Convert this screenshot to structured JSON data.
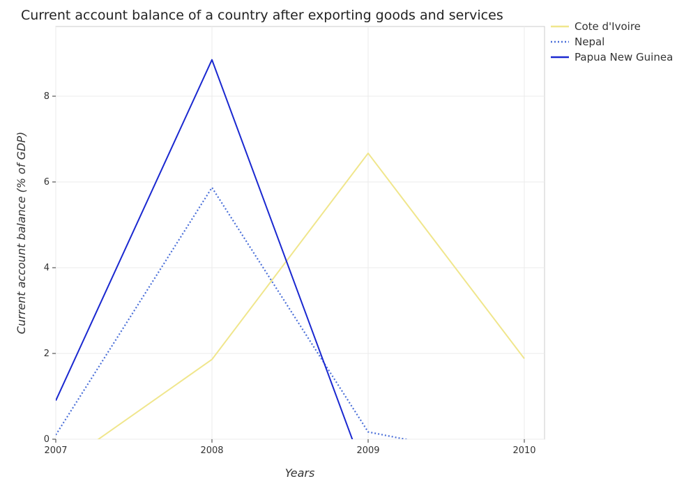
{
  "chart_data": {
    "type": "line",
    "title": "Current account balance of a country after exporting goods and services",
    "xlabel": "Years",
    "ylabel": "Current account balance (% of GDP)",
    "categories": [
      "2007",
      "2008",
      "2009",
      "2010"
    ],
    "ylim": [
      0,
      9.6
    ],
    "yticks": [
      "0",
      "2",
      "4",
      "6",
      "8"
    ],
    "legend_position": "top-right",
    "series": [
      {
        "name": "Cote d'Ivoire",
        "color": "#f0e68c",
        "dash": "solid",
        "values": [
          -0.7,
          1.86,
          6.67,
          1.88
        ]
      },
      {
        "name": "Nepal",
        "color": "#4a6fd8",
        "dash": "dotted",
        "values": [
          0.1,
          5.87,
          0.17,
          -0.55
        ]
      },
      {
        "name": "Papua New Guinea",
        "color": "#1a28d0",
        "dash": "solid",
        "values": [
          0.9,
          8.85,
          -1.0,
          null
        ]
      }
    ]
  }
}
